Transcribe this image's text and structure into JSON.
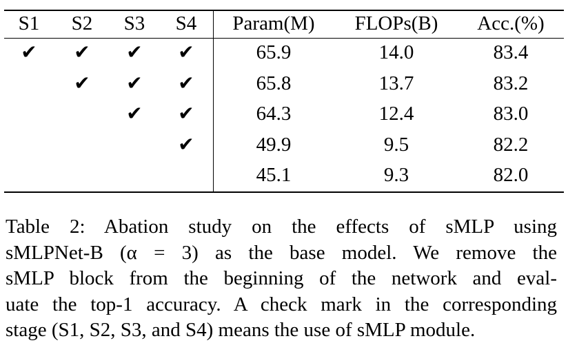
{
  "table": {
    "header": [
      "S1",
      "S2",
      "S3",
      "S4",
      "Param(M)",
      "FLOPs(B)",
      "Acc.(%)"
    ],
    "rows": [
      [
        "✔",
        "✔",
        "✔",
        "✔",
        "65.9",
        "14.0",
        "83.4"
      ],
      [
        null,
        "✔",
        "✔",
        "✔",
        "65.8",
        "13.7",
        "83.2"
      ],
      [
        null,
        null,
        "✔",
        "✔",
        "64.3",
        "12.4",
        "83.0"
      ],
      [
        null,
        null,
        null,
        "✔",
        "49.9",
        "9.5",
        "82.2"
      ],
      [
        null,
        null,
        null,
        null,
        "45.1",
        "9.3",
        "82.0"
      ]
    ]
  },
  "caption": {
    "lines": [
      "Table 2: Abation study on the effects of sMLP using",
      "sMLPNet-B (α = 3) as the base model. We remove the",
      "sMLP block from the beginning of the network and eval-",
      "uate the top-1 accuracy. A check mark in the corresponding",
      "stage (S1, S2, S3, and S4) means the use of sMLP module."
    ]
  }
}
